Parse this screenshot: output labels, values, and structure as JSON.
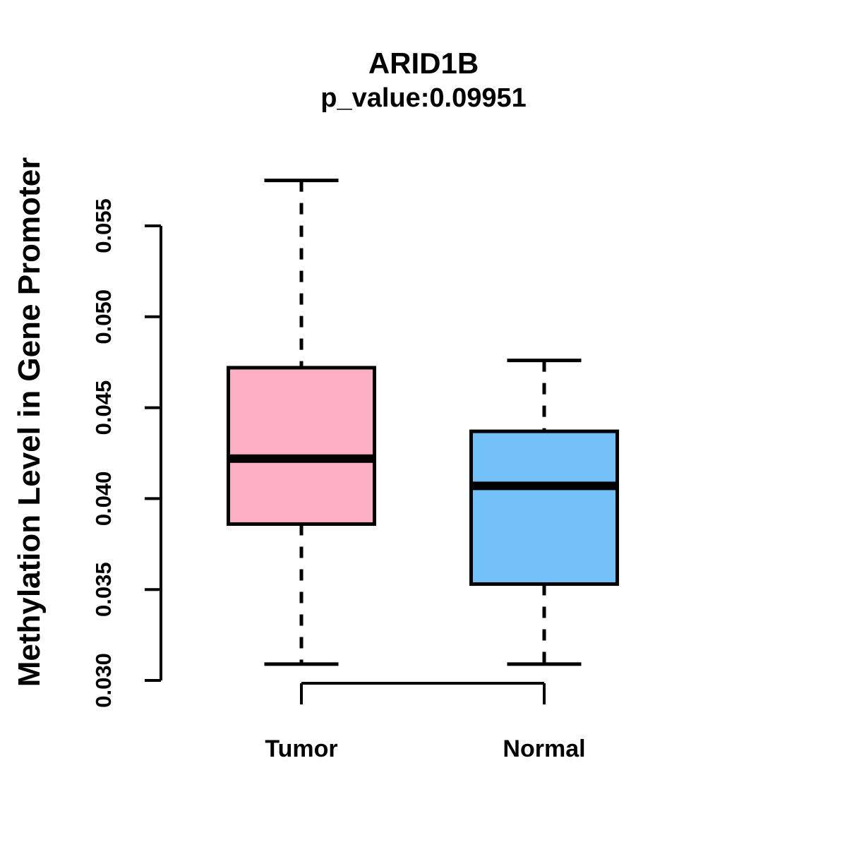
{
  "header": {
    "title": "ARID1B",
    "subtitle": "p_value:0.09951"
  },
  "chart_data": {
    "type": "boxplot",
    "title": "ARID1B",
    "subtitle": "p_value:0.09951",
    "xlabel": "",
    "ylabel": "Methylation Level in Gene Promoter",
    "y_ticks": [
      0.03,
      0.035,
      0.04,
      0.045,
      0.05,
      0.055
    ],
    "y_tick_labels": [
      "0.030",
      "0.035",
      "0.040",
      "0.045",
      "0.050",
      "0.055"
    ],
    "ylim": [
      0.0295,
      0.0578
    ],
    "grid": false,
    "legend": false,
    "categories": [
      "Tumor",
      "Normal"
    ],
    "groups": [
      {
        "label": "Tumor",
        "color": "#FCAFC2",
        "whisker_high": 0.0575,
        "q3": 0.0472,
        "median": 0.0422,
        "q1": 0.0386,
        "whisker_low": 0.0309
      },
      {
        "label": "Normal",
        "color": "#73BFF7",
        "whisker_high": 0.0476,
        "q3": 0.0437,
        "median": 0.0407,
        "q1": 0.0353,
        "whisker_low": 0.0309
      }
    ]
  },
  "colors": {
    "tumor_fill": "#FCAFC2",
    "normal_fill": "#73BFF7",
    "stroke": "#000000",
    "background": "#FFFFFF"
  }
}
